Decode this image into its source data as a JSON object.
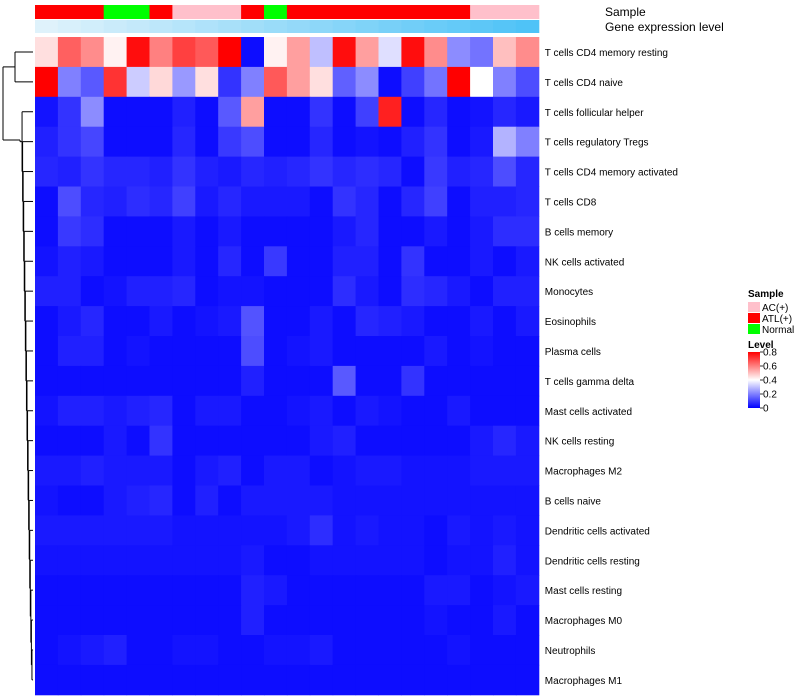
{
  "chart_data": {
    "type": "heatmap",
    "title": "",
    "annotation_titles": {
      "sample": "Sample",
      "expression": "Gene expression level"
    },
    "rows": [
      "T cells CD4 memory resting",
      "T cells CD4 naive",
      "T cells follicular helper",
      "T cells regulatory  Tregs",
      "T cells CD4 memory activated",
      "T cells CD8",
      "B cells memory",
      "NK cells activated",
      "Monocytes",
      "Eosinophils",
      "Plasma cells",
      "T cells gamma delta",
      "Mast cells activated",
      "NK cells resting",
      "Macrophages M2",
      "B cells naive",
      "Dendritic cells activated",
      "Dendritic cells resting",
      "Mast cells resting",
      "Macrophages M0",
      "Neutrophils",
      "Macrophages M1"
    ],
    "sample_groups": [
      "ATL(+)",
      "ATL(+)",
      "ATL(+)",
      "Normal",
      "Normal",
      "ATL(+)",
      "AC(+)",
      "AC(+)",
      "AC(+)",
      "ATL(+)",
      "Normal",
      "ATL(+)",
      "ATL(+)",
      "ATL(+)",
      "ATL(+)",
      "ATL(+)",
      "ATL(+)",
      "ATL(+)",
      "ATL(+)",
      "AC(+)",
      "AC(+)",
      "AC(+)"
    ],
    "expression_level": [
      0.1,
      0.12,
      0.14,
      0.16,
      0.18,
      0.2,
      0.22,
      0.24,
      0.26,
      0.28,
      0.3,
      0.32,
      0.34,
      0.36,
      0.38,
      0.4,
      0.42,
      0.44,
      0.46,
      0.48,
      0.5,
      0.52
    ],
    "values": [
      [
        0.45,
        0.65,
        0.58,
        0.42,
        0.78,
        0.6,
        0.7,
        0.66,
        0.8,
        0.02,
        0.42,
        0.55,
        0.3,
        0.78,
        0.55,
        0.35,
        0.78,
        0.58,
        0.22,
        0.18,
        0.5,
        0.58
      ],
      [
        0.8,
        0.2,
        0.14,
        0.72,
        0.32,
        0.46,
        0.24,
        0.45,
        0.08,
        0.2,
        0.66,
        0.55,
        0.45,
        0.15,
        0.22,
        0.02,
        0.1,
        0.18,
        0.8,
        0.4,
        0.2,
        0.12
      ],
      [
        0.03,
        0.08,
        0.22,
        0.02,
        0.02,
        0.02,
        0.05,
        0.02,
        0.14,
        0.55,
        0.02,
        0.02,
        0.08,
        0.02,
        0.1,
        0.75,
        0.02,
        0.06,
        0.02,
        0.03,
        0.06,
        0.04
      ],
      [
        0.05,
        0.08,
        0.11,
        0.02,
        0.02,
        0.02,
        0.06,
        0.02,
        0.09,
        0.12,
        0.02,
        0.02,
        0.06,
        0.02,
        0.03,
        0.02,
        0.05,
        0.08,
        0.02,
        0.04,
        0.28,
        0.2
      ],
      [
        0.06,
        0.05,
        0.08,
        0.06,
        0.06,
        0.05,
        0.08,
        0.05,
        0.04,
        0.06,
        0.05,
        0.06,
        0.08,
        0.06,
        0.07,
        0.06,
        0.02,
        0.09,
        0.05,
        0.06,
        0.12,
        0.06
      ],
      [
        0.02,
        0.12,
        0.06,
        0.05,
        0.07,
        0.06,
        0.1,
        0.04,
        0.06,
        0.04,
        0.04,
        0.04,
        0.02,
        0.08,
        0.06,
        0.02,
        0.06,
        0.1,
        0.02,
        0.05,
        0.05,
        0.06
      ],
      [
        0.02,
        0.09,
        0.07,
        0.02,
        0.02,
        0.02,
        0.04,
        0.02,
        0.04,
        0.02,
        0.02,
        0.02,
        0.02,
        0.04,
        0.06,
        0.02,
        0.02,
        0.04,
        0.02,
        0.04,
        0.07,
        0.07
      ],
      [
        0.03,
        0.05,
        0.04,
        0.02,
        0.02,
        0.02,
        0.04,
        0.02,
        0.06,
        0.02,
        0.09,
        0.02,
        0.02,
        0.05,
        0.05,
        0.02,
        0.08,
        0.02,
        0.02,
        0.04,
        0.02,
        0.04
      ],
      [
        0.05,
        0.05,
        0.02,
        0.03,
        0.05,
        0.05,
        0.06,
        0.02,
        0.03,
        0.03,
        0.02,
        0.02,
        0.02,
        0.07,
        0.04,
        0.02,
        0.07,
        0.06,
        0.04,
        0.02,
        0.05,
        0.05
      ],
      [
        0.02,
        0.04,
        0.06,
        0.02,
        0.02,
        0.04,
        0.02,
        0.03,
        0.04,
        0.13,
        0.02,
        0.02,
        0.04,
        0.02,
        0.06,
        0.05,
        0.04,
        0.02,
        0.02,
        0.04,
        0.02,
        0.04
      ],
      [
        0.02,
        0.05,
        0.05,
        0.02,
        0.03,
        0.02,
        0.02,
        0.02,
        0.02,
        0.12,
        0.02,
        0.03,
        0.04,
        0.02,
        0.02,
        0.02,
        0.02,
        0.04,
        0.02,
        0.03,
        0.02,
        0.02
      ],
      [
        0.02,
        0.02,
        0.02,
        0.02,
        0.02,
        0.02,
        0.02,
        0.02,
        0.02,
        0.05,
        0.02,
        0.02,
        0.02,
        0.14,
        0.02,
        0.02,
        0.08,
        0.02,
        0.02,
        0.02,
        0.02,
        0.02
      ],
      [
        0.03,
        0.05,
        0.05,
        0.04,
        0.05,
        0.06,
        0.02,
        0.04,
        0.04,
        0.02,
        0.02,
        0.03,
        0.04,
        0.02,
        0.04,
        0.03,
        0.02,
        0.02,
        0.04,
        0.02,
        0.02,
        0.02
      ],
      [
        0.02,
        0.02,
        0.02,
        0.04,
        0.02,
        0.08,
        0.02,
        0.02,
        0.02,
        0.02,
        0.02,
        0.02,
        0.04,
        0.05,
        0.02,
        0.02,
        0.02,
        0.02,
        0.02,
        0.04,
        0.06,
        0.04
      ],
      [
        0.04,
        0.04,
        0.05,
        0.04,
        0.04,
        0.04,
        0.02,
        0.04,
        0.05,
        0.02,
        0.04,
        0.04,
        0.02,
        0.03,
        0.04,
        0.04,
        0.03,
        0.03,
        0.03,
        0.04,
        0.04,
        0.04
      ],
      [
        0.03,
        0.02,
        0.02,
        0.04,
        0.05,
        0.06,
        0.02,
        0.05,
        0.02,
        0.04,
        0.04,
        0.04,
        0.04,
        0.03,
        0.03,
        0.03,
        0.03,
        0.03,
        0.03,
        0.03,
        0.03,
        0.03
      ],
      [
        0.04,
        0.04,
        0.04,
        0.04,
        0.04,
        0.04,
        0.03,
        0.03,
        0.03,
        0.03,
        0.03,
        0.04,
        0.07,
        0.03,
        0.04,
        0.03,
        0.03,
        0.02,
        0.04,
        0.03,
        0.04,
        0.03
      ],
      [
        0.03,
        0.03,
        0.03,
        0.03,
        0.03,
        0.03,
        0.03,
        0.03,
        0.03,
        0.04,
        0.02,
        0.02,
        0.03,
        0.03,
        0.03,
        0.03,
        0.03,
        0.02,
        0.03,
        0.03,
        0.05,
        0.03
      ],
      [
        0.02,
        0.02,
        0.02,
        0.02,
        0.02,
        0.02,
        0.02,
        0.02,
        0.02,
        0.05,
        0.04,
        0.02,
        0.02,
        0.02,
        0.02,
        0.02,
        0.02,
        0.04,
        0.04,
        0.02,
        0.03,
        0.04
      ],
      [
        0.02,
        0.02,
        0.02,
        0.02,
        0.02,
        0.02,
        0.02,
        0.02,
        0.02,
        0.05,
        0.02,
        0.02,
        0.02,
        0.02,
        0.02,
        0.02,
        0.02,
        0.03,
        0.02,
        0.02,
        0.04,
        0.02
      ],
      [
        0.02,
        0.03,
        0.04,
        0.05,
        0.02,
        0.02,
        0.03,
        0.03,
        0.02,
        0.02,
        0.03,
        0.03,
        0.04,
        0.02,
        0.02,
        0.02,
        0.02,
        0.02,
        0.03,
        0.02,
        0.02,
        0.02
      ],
      [
        0.02,
        0.02,
        0.02,
        0.02,
        0.02,
        0.02,
        0.02,
        0.02,
        0.02,
        0.02,
        0.02,
        0.02,
        0.02,
        0.02,
        0.02,
        0.02,
        0.02,
        0.02,
        0.02,
        0.02,
        0.02,
        0.02
      ]
    ],
    "legend": {
      "sample_title": "Sample",
      "sample_entries": [
        {
          "label": "AC(+)",
          "color": "#ffc0cb"
        },
        {
          "label": "ATL(+)",
          "color": "#ff0000"
        },
        {
          "label": "Normal",
          "color": "#00ff00"
        }
      ],
      "level_title": "Level",
      "level_ticks": [
        "0.8",
        "0.6",
        "0.4",
        "0.2",
        "0"
      ],
      "level_tick_values": [
        0.8,
        0.6,
        0.4,
        0.2,
        0
      ],
      "range": [
        0,
        0.8
      ]
    },
    "colors": {
      "low": "#0000ff",
      "mid": "#ffffff",
      "high": "#ff0000",
      "expr_low": "#dff2fb",
      "expr_high": "#4fc3f7"
    }
  }
}
